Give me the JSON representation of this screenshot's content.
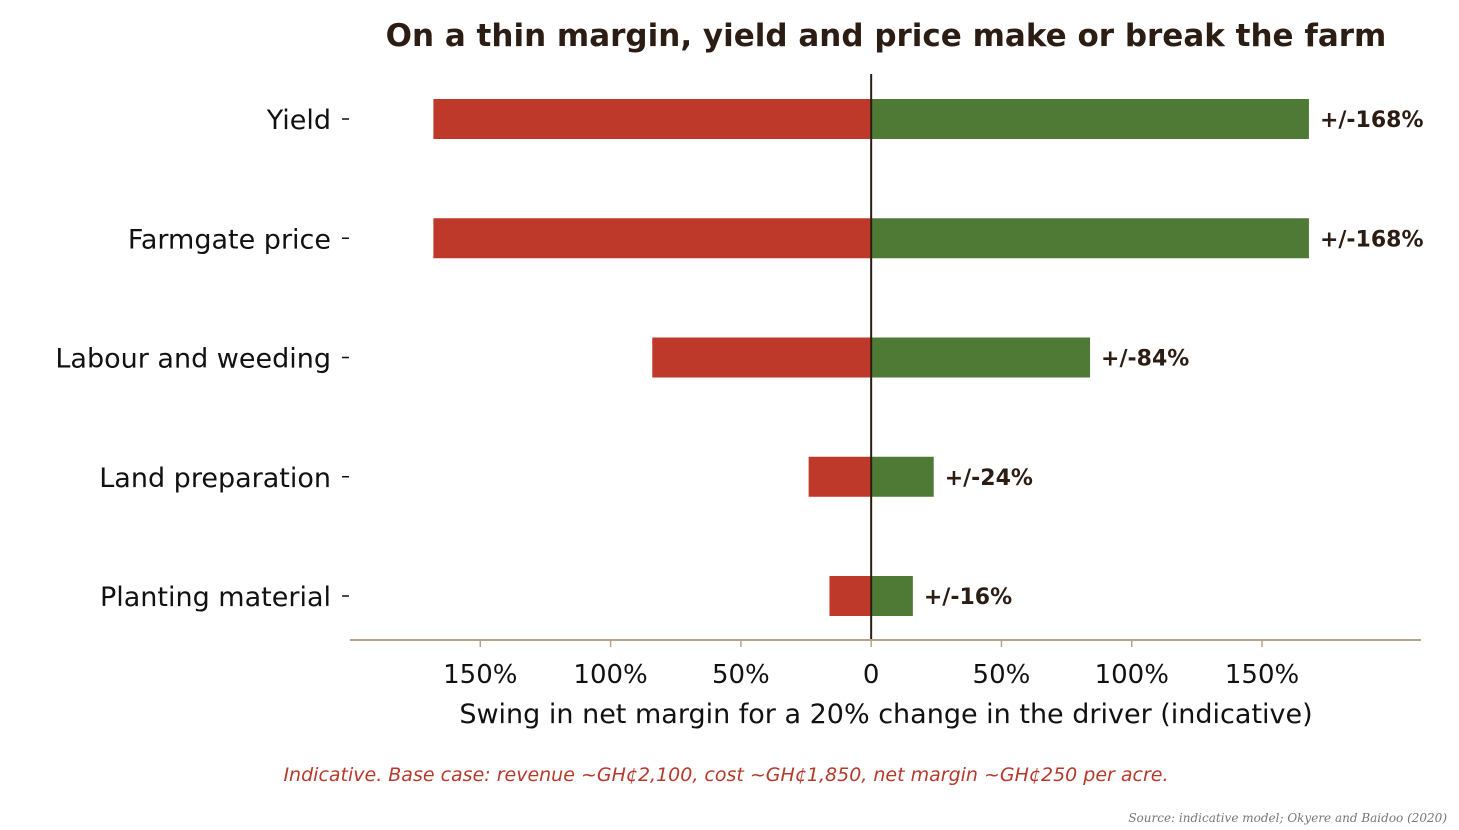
{
  "chart_data": {
    "type": "bar",
    "orientation": "horizontal-tornado",
    "title": "On a thin margin, yield and price make or break the farm",
    "xlabel": "Swing in net margin for a 20% change in the driver (indicative)",
    "ylabel": "",
    "categories": [
      "Yield",
      "Farmgate price",
      "Labour and weeding",
      "Land preparation",
      "Planting material"
    ],
    "series": [
      {
        "values": [
          -168,
          -168,
          -84,
          -24,
          -16
        ],
        "color": "#bf392b"
      },
      {
        "values": [
          168,
          168,
          84,
          24,
          16
        ],
        "color": "#4e7a35"
      }
    ],
    "data_labels": [
      "+/-168%",
      "+/-168%",
      "+/-84%",
      "+/-24%",
      "+/-16%"
    ],
    "xlim": [
      -200,
      211
    ],
    "xticks": [
      -150,
      -100,
      -50,
      0,
      50,
      100,
      150
    ],
    "xtick_labels": [
      "150%",
      "100%",
      "50%",
      "0",
      "50%",
      "100%",
      "150%"
    ],
    "grid": false,
    "note": "Indicative. Base case: revenue ~GH¢2,100, cost ~GH¢1,850, net margin ~GH¢250 per acre.",
    "source": "Source: indicative model; Okyere and Baidoo (2020)"
  }
}
